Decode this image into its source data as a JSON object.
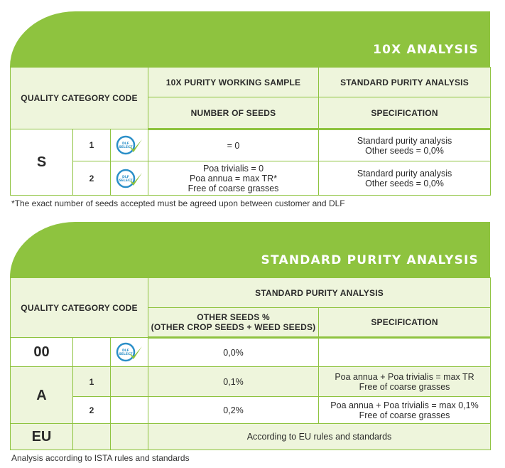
{
  "table1": {
    "banner_title": "10X ANALYSIS",
    "header": {
      "category_label": "QUALITY CATEGORY CODE",
      "col1_top": "10X PURITY WORKING SAMPLE",
      "col2_top": "STANDARD PURITY ANALYSIS",
      "col1_sub": "NUMBER OF SEEDS",
      "col2_sub": "SPECIFICATION"
    },
    "code": "S",
    "rows": [
      {
        "sub": "1",
        "badge_icon": "dlf-select-icon",
        "seeds": [
          "= 0"
        ],
        "spec": [
          "Standard purity analysis",
          "Other seeds = 0,0%"
        ]
      },
      {
        "sub": "2",
        "badge_icon": "dlf-select-icon",
        "seeds": [
          "Poa trivialis = 0",
          "Poa annua = max TR*",
          "Free of coarse grasses"
        ],
        "spec": [
          "Standard purity analysis",
          "Other seeds = 0,0%"
        ]
      }
    ],
    "footnote": "*The exact number of seeds accepted must be agreed upon between customer and DLF"
  },
  "table2": {
    "banner_title": "STANDARD PURITY ANALYSIS",
    "header": {
      "category_label": "QUALITY CATEGORY CODE",
      "group_label": "STANDARD PURITY ANALYSIS",
      "col1_sub_line1": "OTHER SEEDS %",
      "col1_sub_line2": "(OTHER CROP SEEDS + WEED SEEDS)",
      "col2_sub": "SPECIFICATION"
    },
    "rows": {
      "r00": {
        "code": "00",
        "badge_icon": "dlf-select-icon",
        "value": "0,0%",
        "spec": ""
      },
      "rA1": {
        "code": "A",
        "sub": "1",
        "value": "0,1%",
        "spec": [
          "Poa annua + Poa trivialis = max TR",
          "Free of coarse grasses"
        ]
      },
      "rA2": {
        "sub": "2",
        "value": "0,2%",
        "spec": [
          "Poa annua + Poa trivialis = max 0,1%",
          "Free of coarse grasses"
        ]
      },
      "rEU": {
        "code": "EU",
        "text": "According to EU rules and standards"
      }
    },
    "footnote": "Analysis according to ISTA rules and standards"
  },
  "badge_text": [
    "DLF",
    "SELECT"
  ],
  "colors": {
    "green": "#8ec33f",
    "tint": "#eef5dc",
    "badge_blue": "#2b8fc8"
  }
}
